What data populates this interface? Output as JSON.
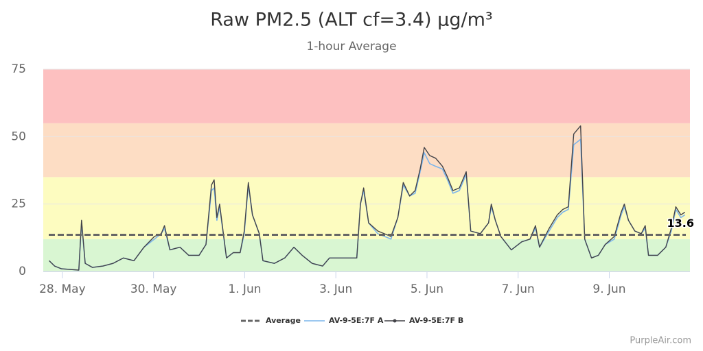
{
  "chart_data": {
    "type": "line",
    "title": "Raw PM2.5 (ALT cf=3.4) μg/m³",
    "subtitle": "1-hour Average",
    "credit": "PurpleAir.com",
    "xlim": [
      -0.42,
      13.77
    ],
    "xticks": [
      {
        "value": 0,
        "label": "28. May"
      },
      {
        "value": 2,
        "label": "30. May"
      },
      {
        "value": 4,
        "label": "1. Jun"
      },
      {
        "value": 6,
        "label": "3. Jun"
      },
      {
        "value": 8,
        "label": "5. Jun"
      },
      {
        "value": 10,
        "label": "7. Jun"
      },
      {
        "value": 12,
        "label": "9. Jun"
      }
    ],
    "ylim": [
      0,
      75
    ],
    "yticks": [
      0,
      25,
      50,
      75
    ],
    "grid": true,
    "legend": "bottom",
    "bands": [
      {
        "from": 0,
        "to": 12,
        "color": "#d9f6d2"
      },
      {
        "from": 12,
        "to": 35,
        "color": "#fdfcc0"
      },
      {
        "from": 35,
        "to": 55,
        "color": "#fdddc4"
      },
      {
        "from": 55,
        "to": 75,
        "color": "#fdc0c0"
      }
    ],
    "average": {
      "name": "Average",
      "value": 13.6,
      "color": "#666666"
    },
    "x": [
      -0.29,
      -0.17,
      -0.02,
      0.36,
      0.42,
      0.5,
      0.66,
      0.89,
      1.11,
      1.34,
      1.57,
      1.79,
      2.02,
      2.17,
      2.24,
      2.36,
      2.58,
      2.77,
      3.0,
      3.15,
      3.27,
      3.33,
      3.39,
      3.45,
      3.6,
      3.75,
      3.9,
      3.99,
      4.08,
      4.17,
      4.32,
      4.4,
      4.65,
      4.88,
      5.08,
      5.26,
      5.48,
      5.71,
      5.86,
      6.16,
      6.46,
      6.54,
      6.61,
      6.72,
      6.92,
      7.21,
      7.36,
      7.48,
      7.62,
      7.74,
      7.85,
      7.94,
      8.06,
      8.19,
      8.34,
      8.45,
      8.57,
      8.71,
      8.86,
      8.96,
      9.17,
      9.35,
      9.41,
      9.5,
      9.62,
      9.85,
      10.08,
      10.26,
      10.38,
      10.47,
      10.68,
      10.86,
      10.98,
      11.1,
      11.22,
      11.37,
      11.46,
      11.61,
      11.76,
      11.91,
      12.11,
      12.26,
      12.33,
      12.42,
      12.56,
      12.7,
      12.79,
      12.86,
      13.06,
      13.24,
      13.36,
      13.46,
      13.57,
      13.66
    ],
    "series": [
      {
        "name": "AV-9-5E:7F A",
        "color": "#7cb5ec",
        "values": [
          4,
          2,
          1,
          0.5,
          18,
          3,
          1.5,
          2,
          3,
          5,
          4,
          9,
          12,
          14,
          16,
          8,
          9,
          6,
          6,
          10,
          30,
          31,
          19,
          24,
          5,
          7,
          7,
          14,
          32,
          21,
          14,
          4,
          3,
          5,
          9,
          6,
          3,
          2,
          5,
          5,
          5,
          25,
          30,
          18,
          14,
          12,
          20,
          32,
          28,
          29,
          37,
          44,
          40,
          39,
          38,
          34,
          29,
          30,
          36,
          15,
          14,
          18,
          24,
          19,
          13,
          8,
          11,
          12,
          16,
          9,
          15,
          20,
          22,
          23,
          47,
          49,
          12,
          5,
          6,
          10,
          12,
          21,
          24,
          19,
          15,
          14,
          16,
          6,
          6,
          9,
          15,
          23,
          20,
          21
        ]
      },
      {
        "name": "AV-9-5E:7F B",
        "color": "#434348",
        "values": [
          4,
          2,
          1,
          0.5,
          19,
          3,
          1.5,
          2,
          3,
          5,
          4,
          9,
          13,
          14,
          17,
          8,
          9,
          6,
          6,
          10,
          32,
          34,
          20,
          25,
          5,
          7,
          7,
          15,
          33,
          21,
          14,
          4,
          3,
          5,
          9,
          6,
          3,
          2,
          5,
          5,
          5,
          25,
          31,
          18,
          15,
          13,
          20,
          33,
          28,
          30,
          38,
          46,
          43,
          42,
          39,
          35,
          30,
          31,
          37,
          15,
          14,
          18,
          25,
          19,
          13,
          8,
          11,
          12,
          17,
          9,
          16,
          21,
          23,
          24,
          51,
          54,
          12,
          5,
          6,
          10,
          13,
          22,
          25,
          19,
          15,
          14,
          17,
          6,
          6,
          9,
          16,
          24,
          21,
          22
        ]
      }
    ]
  }
}
